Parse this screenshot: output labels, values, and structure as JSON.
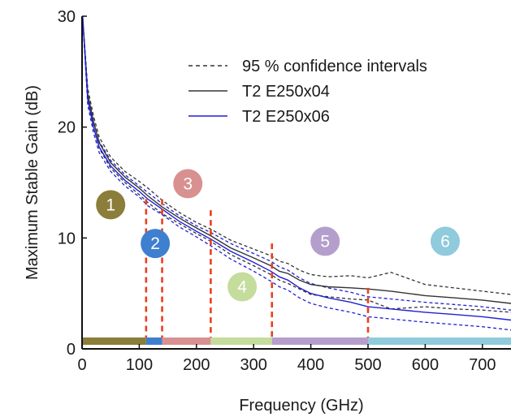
{
  "chart_data": {
    "type": "line",
    "xlabel": "Frequency (GHz)",
    "ylabel": "Maximum Stable Gain (dB)",
    "xlim": [
      0,
      750
    ],
    "ylim": [
      0,
      30
    ],
    "x_ticks": [
      0,
      100,
      200,
      300,
      400,
      500,
      600,
      700
    ],
    "y_ticks": [
      0,
      10,
      20,
      30
    ],
    "legend": {
      "placement": "top-right",
      "entries": [
        {
          "label": "95 % confidence intervals",
          "style": "dashed",
          "color": "#333333"
        },
        {
          "label": "T2 E250x04",
          "style": "solid",
          "color": "#333333"
        },
        {
          "label": "T2 E250x06",
          "style": "solid",
          "color": "#1f1fd6"
        }
      ]
    },
    "series": [
      {
        "name": "T2 E250x04",
        "color": "#333333",
        "x": [
          1,
          10,
          20,
          30,
          50,
          75,
          100,
          115,
          140,
          170,
          200,
          225,
          260,
          300,
          330,
          345,
          360,
          380,
          400,
          430,
          470,
          500,
          540,
          600,
          650,
          700,
          750
        ],
        "y": [
          30,
          23,
          20.5,
          18.6,
          16.8,
          15.5,
          14.5,
          13.8,
          12.8,
          11.8,
          10.9,
          10.2,
          9.1,
          8.2,
          7.5,
          7.0,
          6.8,
          6.2,
          5.8,
          5.6,
          5.5,
          5.4,
          5.2,
          4.8,
          4.6,
          4.4,
          4.1
        ]
      },
      {
        "name": "T2 E250x06",
        "color": "#1f1fd6",
        "x": [
          1,
          10,
          20,
          30,
          50,
          75,
          100,
          115,
          140,
          170,
          200,
          225,
          260,
          300,
          330,
          345,
          360,
          380,
          400,
          430,
          470,
          500,
          540,
          600,
          650,
          700,
          750
        ],
        "y": [
          30,
          22.5,
          20,
          18.2,
          16.5,
          15.2,
          14.2,
          13.5,
          12.6,
          11.5,
          10.6,
          9.9,
          8.8,
          7.8,
          7.0,
          6.5,
          6.2,
          5.5,
          5.0,
          4.6,
          4.2,
          3.8,
          3.6,
          3.3,
          3.1,
          2.9,
          2.6
        ]
      }
    ],
    "confidence_intervals": [
      {
        "series": "T2 E250x04",
        "color": "#333333",
        "x": [
          1,
          10,
          20,
          30,
          50,
          75,
          100,
          115,
          140,
          170,
          200,
          225,
          260,
          300,
          330,
          345,
          360,
          380,
          400,
          430,
          470,
          500,
          540,
          600,
          650,
          700,
          750
        ],
        "upper": [
          30,
          23.5,
          21,
          19.1,
          17.3,
          16.0,
          15.1,
          14.5,
          13.4,
          12.3,
          11.4,
          10.8,
          9.8,
          9.0,
          8.4,
          7.9,
          7.7,
          7.1,
          6.7,
          6.5,
          6.6,
          6.4,
          6.9,
          5.8,
          5.5,
          5.2,
          4.9
        ],
        "lower": [
          30,
          22.5,
          20,
          18.1,
          16.3,
          15.0,
          13.9,
          13.2,
          12.2,
          11.3,
          10.4,
          9.7,
          8.5,
          7.5,
          6.7,
          6.2,
          5.9,
          5.4,
          4.9,
          4.7,
          4.5,
          4.4,
          3.6,
          3.8,
          3.6,
          3.5,
          3.3
        ]
      },
      {
        "series": "T2 E250x06",
        "color": "#1f1fd6",
        "x": [
          1,
          10,
          20,
          30,
          50,
          75,
          100,
          115,
          140,
          170,
          200,
          225,
          260,
          300,
          330,
          345,
          360,
          380,
          400,
          430,
          470,
          500,
          540,
          600,
          650,
          700,
          750
        ],
        "upper": [
          30,
          23,
          20.5,
          18.7,
          17.0,
          15.7,
          14.7,
          14.1,
          13.1,
          12.0,
          11.1,
          10.5,
          9.5,
          8.6,
          7.9,
          7.4,
          7.1,
          6.4,
          5.9,
          5.5,
          5.1,
          4.7,
          4.5,
          4.2,
          4.0,
          3.8,
          3.5
        ],
        "lower": [
          30,
          22,
          19.5,
          17.7,
          16.0,
          14.7,
          13.7,
          12.9,
          12.1,
          11.0,
          10.1,
          9.3,
          8.1,
          7.0,
          6.1,
          5.6,
          5.3,
          4.6,
          4.1,
          3.7,
          3.3,
          2.9,
          2.7,
          2.4,
          2.2,
          2.0,
          1.7
        ]
      }
    ],
    "region_boundaries": [
      112,
      140,
      225,
      332,
      500
    ],
    "regions": [
      {
        "label": "1",
        "color": "#8b7d3a",
        "x_start": 0,
        "x_end": 112,
        "badge_x": 50,
        "badge_y": 13
      },
      {
        "label": "2",
        "color": "#3f7fd0",
        "x_start": 112,
        "x_end": 140,
        "badge_x": 128,
        "badge_y": 9.5
      },
      {
        "label": "3",
        "color": "#d99090",
        "x_start": 140,
        "x_end": 225,
        "badge_x": 185,
        "badge_y": 14.9
      },
      {
        "label": "4",
        "color": "#c4dc9c",
        "x_start": 225,
        "x_end": 332,
        "badge_x": 280,
        "badge_y": 5.6
      },
      {
        "label": "5",
        "color": "#b49fcc",
        "x_start": 332,
        "x_end": 500,
        "badge_x": 425,
        "badge_y": 9.7
      },
      {
        "label": "6",
        "color": "#8fcbdc",
        "x_start": 500,
        "x_end": 750,
        "badge_x": 635,
        "badge_y": 9.7
      }
    ],
    "boundary_color": "#e8401c"
  }
}
